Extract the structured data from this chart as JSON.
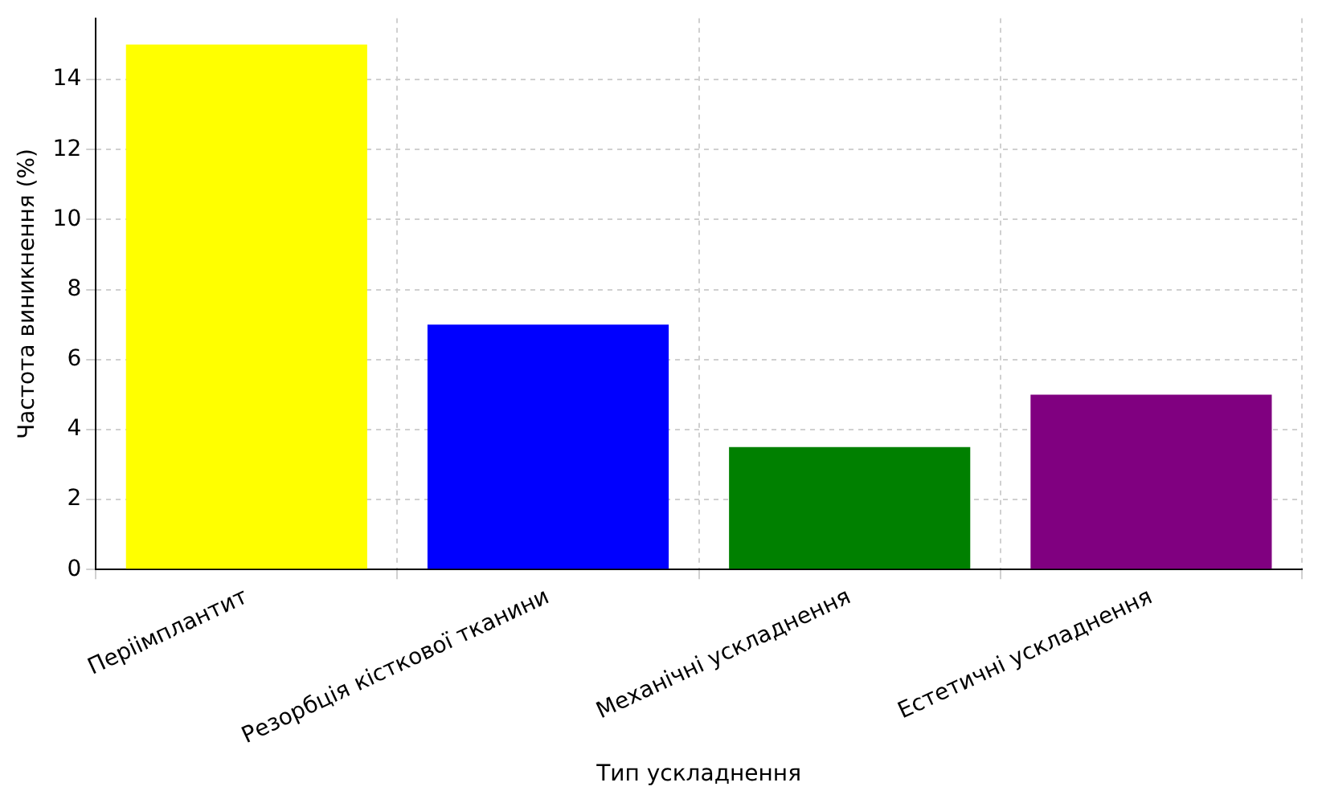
{
  "chart_data": {
    "type": "bar",
    "xlabel": "Тип ускладнення",
    "ylabel": "Частота виникнення (%)",
    "categories": [
      "Періімплантит",
      "Резорбція кісткової тканини",
      "Механічні ускладнення",
      "Естетичні ускладнення"
    ],
    "values": [
      15,
      7,
      3.5,
      5
    ],
    "colors": [
      "#ffff00",
      "#0000ff",
      "#008000",
      "#800080"
    ],
    "ylim": [
      0,
      15.75
    ],
    "yticks": [
      0,
      2,
      4,
      6,
      8,
      10,
      12,
      14
    ],
    "grid": true
  }
}
